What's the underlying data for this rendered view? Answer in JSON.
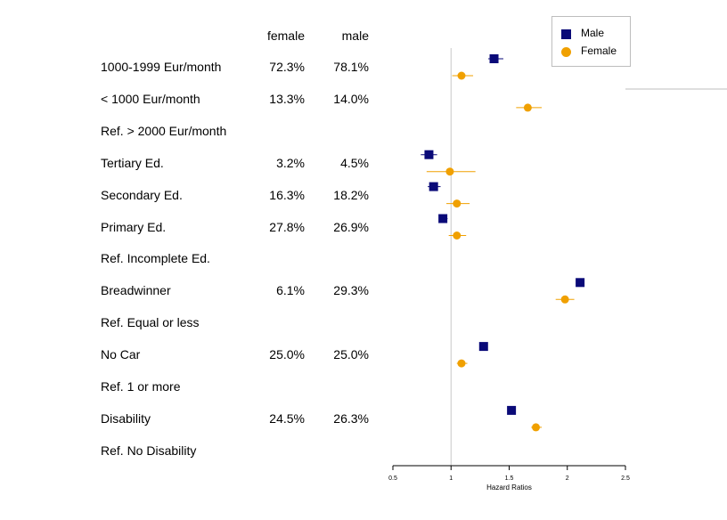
{
  "table": {
    "headers": {
      "female": "female",
      "male": "male"
    },
    "rows": [
      {
        "label": "1000-1999  Eur/month",
        "female": "72.3%",
        "male": "78.1%"
      },
      {
        "label": "< 1000 Eur/month",
        "female": "13.3%",
        "male": "14.0%"
      },
      {
        "label": "Ref. > 2000 Eur/month",
        "female": "",
        "male": ""
      },
      {
        "label": "Tertiary Ed.",
        "female": "3.2%",
        "male": "4.5%"
      },
      {
        "label": "Secondary Ed.",
        "female": "16.3%",
        "male": "18.2%"
      },
      {
        "label": "Primary Ed.",
        "female": "27.8%",
        "male": "26.9%"
      },
      {
        "label": "Ref. Incomplete Ed.",
        "female": "",
        "male": ""
      },
      {
        "label": "Breadwinner",
        "female": "6.1%",
        "male": "29.3%"
      },
      {
        "label": "Ref. Equal or less",
        "female": "",
        "male": ""
      },
      {
        "label": "No Car",
        "female": "25.0%",
        "male": "25.0%"
      },
      {
        "label": "Ref. 1 or more",
        "female": "",
        "male": ""
      },
      {
        "label": "Disability",
        "female": "24.5%",
        "male": "26.3%"
      },
      {
        "label": "Ref. No Disability",
        "female": "",
        "male": ""
      }
    ]
  },
  "chart_data": {
    "type": "scatter",
    "xlabel": "Hazard Ratios",
    "ylabel": "",
    "xlim": [
      0.5,
      2.5
    ],
    "xticks": [
      "0.5",
      "1",
      "1.5",
      "2",
      "2.5"
    ],
    "reference_line": 1,
    "grid": false,
    "legend": {
      "placement": "top-right",
      "entries": [
        "Male",
        "Female"
      ]
    },
    "series": [
      {
        "name": "Male",
        "color": "#0a0a78",
        "marker": "square",
        "points": [
          {
            "row": "1000-1999  Eur/month",
            "hr": 1.37,
            "lo": 1.32,
            "hi": 1.45
          },
          {
            "row": "Tertiary Ed.",
            "hr": 0.81,
            "lo": 0.74,
            "hi": 0.88
          },
          {
            "row": "Secondary Ed.",
            "hr": 0.85,
            "lo": 0.8,
            "hi": 0.91
          },
          {
            "row": "Primary Ed.",
            "hr": 0.93,
            "lo": 0.9,
            "hi": 0.97
          },
          {
            "row": "Breadwinner",
            "hr": 2.11,
            "lo": 2.08,
            "hi": 2.14
          },
          {
            "row": "No Car",
            "hr": 1.28,
            "lo": 1.26,
            "hi": 1.3
          },
          {
            "row": "Disability",
            "hr": 1.52,
            "lo": 1.49,
            "hi": 1.55
          }
        ]
      },
      {
        "name": "Female",
        "color": "#f0a000",
        "marker": "circle",
        "points": [
          {
            "row": "1000-1999  Eur/month",
            "hr": 1.09,
            "lo": 1.01,
            "hi": 1.19
          },
          {
            "row": "< 1000 Eur/month",
            "hr": 1.66,
            "lo": 1.56,
            "hi": 1.78
          },
          {
            "row": "Tertiary Ed.",
            "hr": 0.99,
            "lo": 0.79,
            "hi": 1.21
          },
          {
            "row": "Secondary Ed.",
            "hr": 1.05,
            "lo": 0.96,
            "hi": 1.16
          },
          {
            "row": "Primary Ed.",
            "hr": 1.05,
            "lo": 0.98,
            "hi": 1.13
          },
          {
            "row": "Breadwinner",
            "hr": 1.98,
            "lo": 1.9,
            "hi": 2.06
          },
          {
            "row": "No Car",
            "hr": 1.09,
            "lo": 1.05,
            "hi": 1.14
          },
          {
            "row": "Disability",
            "hr": 1.73,
            "lo": 1.69,
            "hi": 1.78
          }
        ]
      }
    ]
  }
}
